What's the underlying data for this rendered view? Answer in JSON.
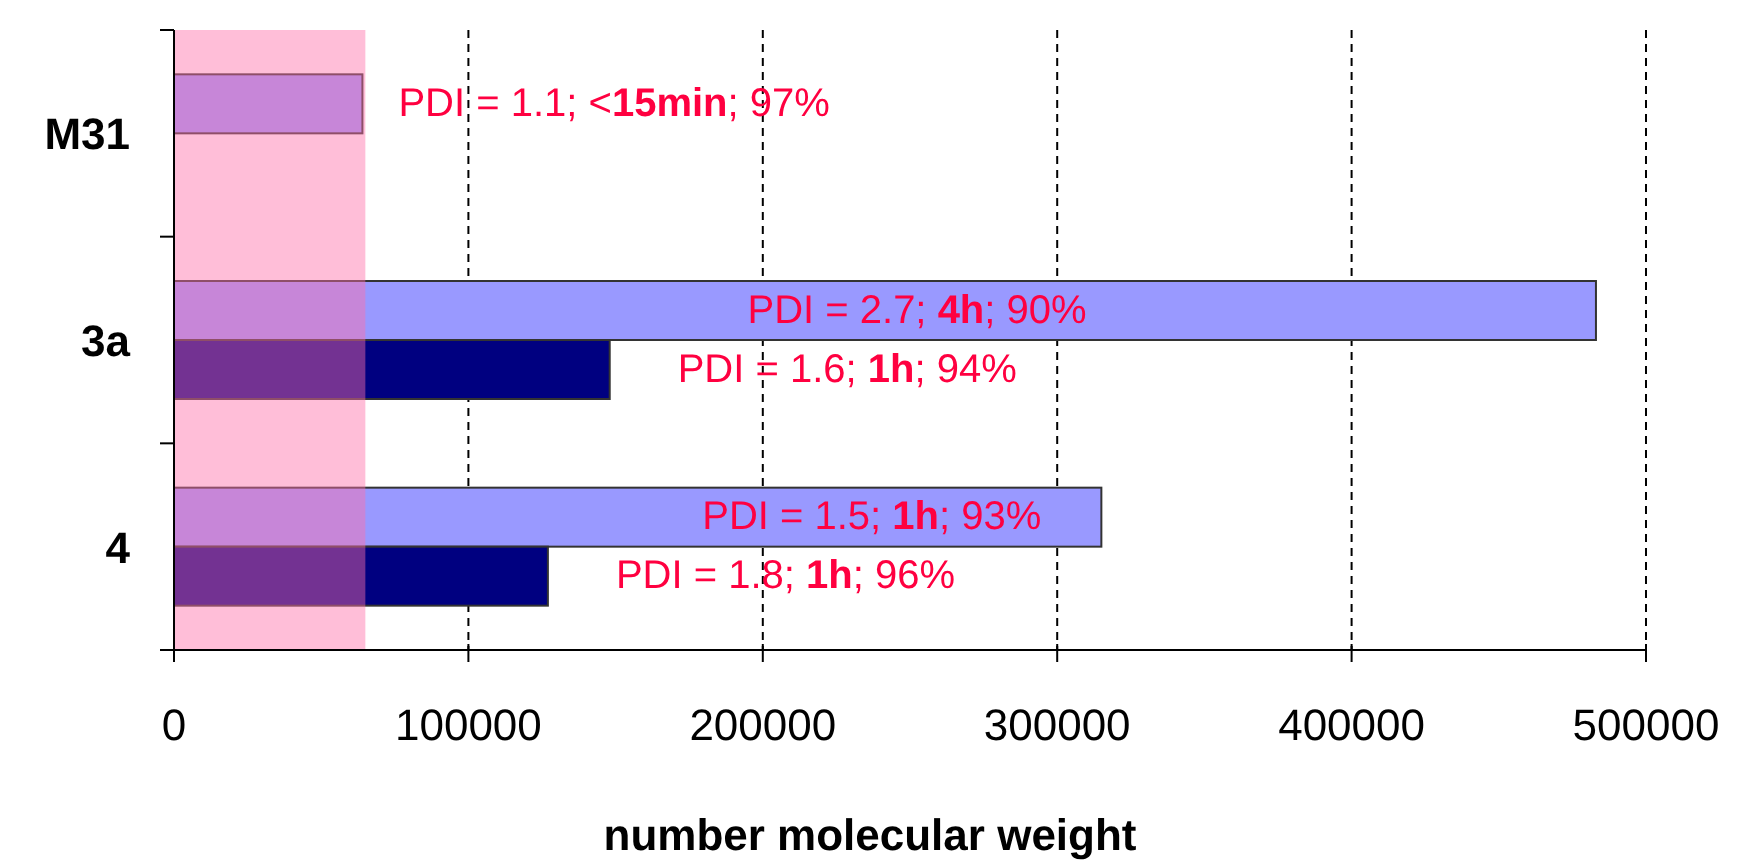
{
  "chart_data": {
    "type": "bar",
    "orientation": "horizontal",
    "xlabel": "number molecular weight",
    "categories": [
      "M31",
      "3a",
      "4"
    ],
    "series": [
      {
        "color": "#9999ff",
        "values": [
          64000,
          483000,
          315000
        ]
      },
      {
        "color": "#000080",
        "values": [
          null,
          148000,
          127000
        ]
      }
    ],
    "annotations": [
      "PDI = 1.1; <15min; 97%",
      "PDI = 2.7; 4h; 90%",
      "PDI = 1.6; 1h; 94%",
      "PDI = 1.5; 1h; 93%",
      "PDI = 1.8; 1h; 96%"
    ],
    "xlim": [
      0,
      500000
    ],
    "xticks": [
      0,
      100000,
      200000,
      300000,
      400000,
      500000
    ],
    "grid": "x",
    "bands": [
      {
        "axis": "x",
        "from": 0,
        "to": 65000,
        "color": "#ff6fa8"
      }
    ]
  }
}
